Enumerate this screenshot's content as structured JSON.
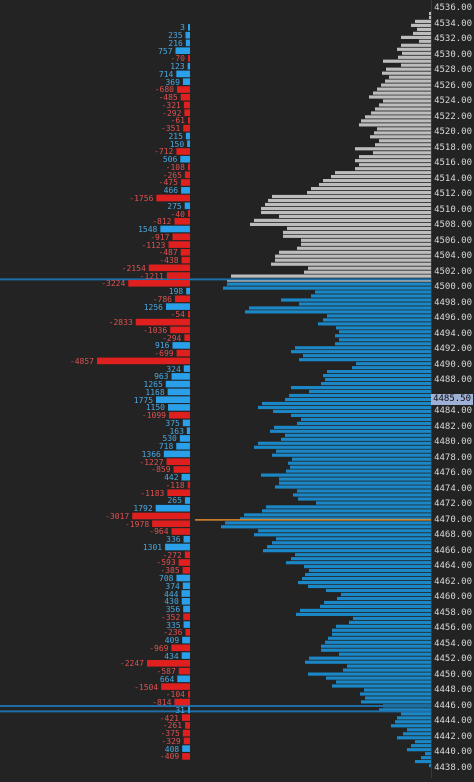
{
  "chart_data": {
    "type": "bar",
    "orientation": "horizontal",
    "description_axis": "price levels with delta and volume profile",
    "price_axis": {
      "ticks": [
        "4536.00",
        "4534.00",
        "4532.00",
        "4530.00",
        "4528.00",
        "4526.00",
        "4524.00",
        "4522.00",
        "4520.00",
        "4518.00",
        "4516.00",
        "4514.00",
        "4512.00",
        "4510.00",
        "4508.00",
        "4506.00",
        "4504.00",
        "4502.00",
        "4500.00",
        "4498.00",
        "4496.00",
        "4494.00",
        "4492.00",
        "4490.00",
        "4488.00",
        "4484.00",
        "4482.00",
        "4480.00",
        "4478.00",
        "4476.00",
        "4474.00",
        "4472.00",
        "4470.00",
        "4468.00",
        "4466.00",
        "4464.00",
        "4462.00",
        "4460.00",
        "4458.00",
        "4456.00",
        "4454.00",
        "4452.00",
        "4450.00",
        "4448.00",
        "4446.00",
        "4444.00",
        "4442.00",
        "4440.00",
        "4438.00"
      ],
      "range": [
        4438,
        4536
      ],
      "current_price": "4485.50",
      "marked_level": 4470.0
    },
    "delta_series": {
      "name": "",
      "prices": [
        4533.5,
        4532.5,
        4531.5,
        4530.5,
        4529.5,
        4528.5,
        4527.5,
        4526.5,
        4525.5,
        4524.5,
        4523.5,
        4522.5,
        4521.5,
        4520.5,
        4519.5,
        4518.5,
        4517.5,
        4516.5,
        4515.5,
        4514.5,
        4513.5,
        4512.5,
        4511.5,
        4510.5,
        4509.5,
        4508.5,
        4507.5,
        4506.5,
        4505.5,
        4504.5,
        4503.5,
        4502.5,
        4501.5,
        4500.5,
        4499.5,
        4498.5,
        4497.5,
        4496.5,
        4495.5,
        4494.5,
        4493.5,
        4492.5,
        4491.5,
        4490.5,
        4489.5,
        4488.5,
        4487.5,
        4486.5,
        4485.5,
        4484.5,
        4483.5,
        4482.5,
        4481.5,
        4480.5,
        4479.5,
        4478.5,
        4477.5,
        4476.5,
        4475.5,
        4474.5,
        4473.5,
        4472.5,
        4471.5,
        4470.5,
        4469.5,
        4468.5,
        4467.5,
        4466.5,
        4465.5,
        4464.5,
        4463.5,
        4462.5,
        4461.5,
        4460.5,
        4459.5,
        4458.5,
        4457.5,
        4456.5,
        4455.5,
        4454.5,
        4453.5,
        4452.5,
        4451.5,
        4450.5,
        4449.5,
        4448.5,
        4447.5,
        4446.5,
        4445.5,
        4444.5,
        4443.5,
        4442.5,
        4441.5,
        4440.5,
        4439.5
      ],
      "values": [
        3,
        235,
        216,
        757,
        -70,
        123,
        714,
        369,
        -680,
        -485,
        -321,
        -292,
        -61,
        -351,
        215,
        150,
        -712,
        506,
        -108,
        -265,
        -475,
        466,
        -1756,
        275,
        -40,
        -812,
        1548,
        -917,
        -1123,
        -487,
        -438,
        -2154,
        -1211,
        -3224,
        198,
        -786,
        1256,
        -54,
        -2833,
        -1036,
        -294,
        916,
        -699,
        -4857,
        324,
        963,
        1265,
        1168,
        1775,
        1150,
        -1099,
        375,
        163,
        530,
        718,
        1366,
        -1227,
        -859,
        442,
        -118,
        -1183,
        265,
        1792,
        -3017,
        -1978,
        -964,
        336,
        1301,
        -272,
        -593,
        -385,
        708,
        374,
        444,
        430,
        356,
        -352,
        335,
        -236,
        409,
        -969,
        434,
        -2247,
        -587,
        664,
        -1504,
        -104,
        -814,
        31,
        -421,
        -261,
        -375,
        -329,
        408,
        -409
      ],
      "labels": [
        "3",
        "235",
        "216",
        "757",
        "-70",
        "123",
        "714",
        "369",
        "-680",
        "-485",
        "-321",
        "-292",
        "-61",
        "-351",
        "215",
        "150",
        "-712",
        "506",
        "-108",
        "-265",
        "-475",
        "466",
        "-1756",
        "275",
        "-40",
        "-812",
        "1548",
        "-917",
        "-1123",
        "-487",
        "-438",
        "-2154",
        "-1211",
        "-3224",
        "198",
        "-786",
        "1256",
        "-54",
        "-2833",
        "-1036",
        "-294",
        "916",
        "-699",
        "-4857",
        "324",
        "963",
        "1265",
        "1168",
        "1775",
        "1150",
        "-1099",
        "375",
        "163",
        "530",
        "718",
        "1366",
        "-1227",
        "-859",
        "442",
        "-118",
        "-1183",
        "265",
        "1792",
        "-3017",
        "-1978",
        "-964",
        "336",
        "1301",
        "-272",
        "-593",
        "-385",
        "708",
        "374",
        "444",
        "430",
        "356",
        "-352",
        "335",
        "-236",
        "409",
        "-969",
        "434",
        "-2247",
        "-587",
        "664",
        "-1504",
        "-104",
        "-814",
        "31",
        "-421",
        "-261",
        "-375",
        "-329",
        "408",
        "-409"
      ]
    },
    "volume_profile": {
      "range_top": 4535.5,
      "range_bottom": 4438.0,
      "approx_widths": [
        5,
        12,
        18,
        20,
        28,
        35,
        40,
        45,
        50,
        44,
        60,
        58,
        52,
        70,
        62,
        55,
        58,
        68,
        72,
        80,
        90,
        110,
        130,
        155,
        170,
        160,
        175,
        150,
        140,
        130,
        160,
        150,
        125,
        210,
        200,
        120,
        140,
        180,
        110,
        105,
        92,
        100,
        130,
        130,
        85,
        100,
        110,
        130,
        140,
        175,
        150,
        130,
        165,
        140,
        175,
        165,
        135,
        145,
        160,
        150,
        140,
        125,
        165,
        195,
        200,
        175,
        165,
        160,
        140,
        135,
        120,
        135,
        115,
        90,
        115,
        125,
        80,
        105,
        95,
        110,
        100,
        120,
        90,
        115,
        95,
        75,
        60,
        50,
        40,
        32,
        28,
        24,
        18,
        12,
        8
      ],
      "color_above_market": "#bdbdbd",
      "color_below_market": "#1b87c6"
    },
    "colors": {
      "positive": "#2a9fea",
      "negative": "#e0201e",
      "positive_label": "#4aa8e0",
      "negative_label": "#e05050",
      "marked_level_line": "#e08a2a",
      "horizontal_lines": "#1e6fa8"
    },
    "horizontal_lines": [
      4501.0,
      4446.0,
      4445.3
    ],
    "grid": false,
    "legend": "none"
  }
}
